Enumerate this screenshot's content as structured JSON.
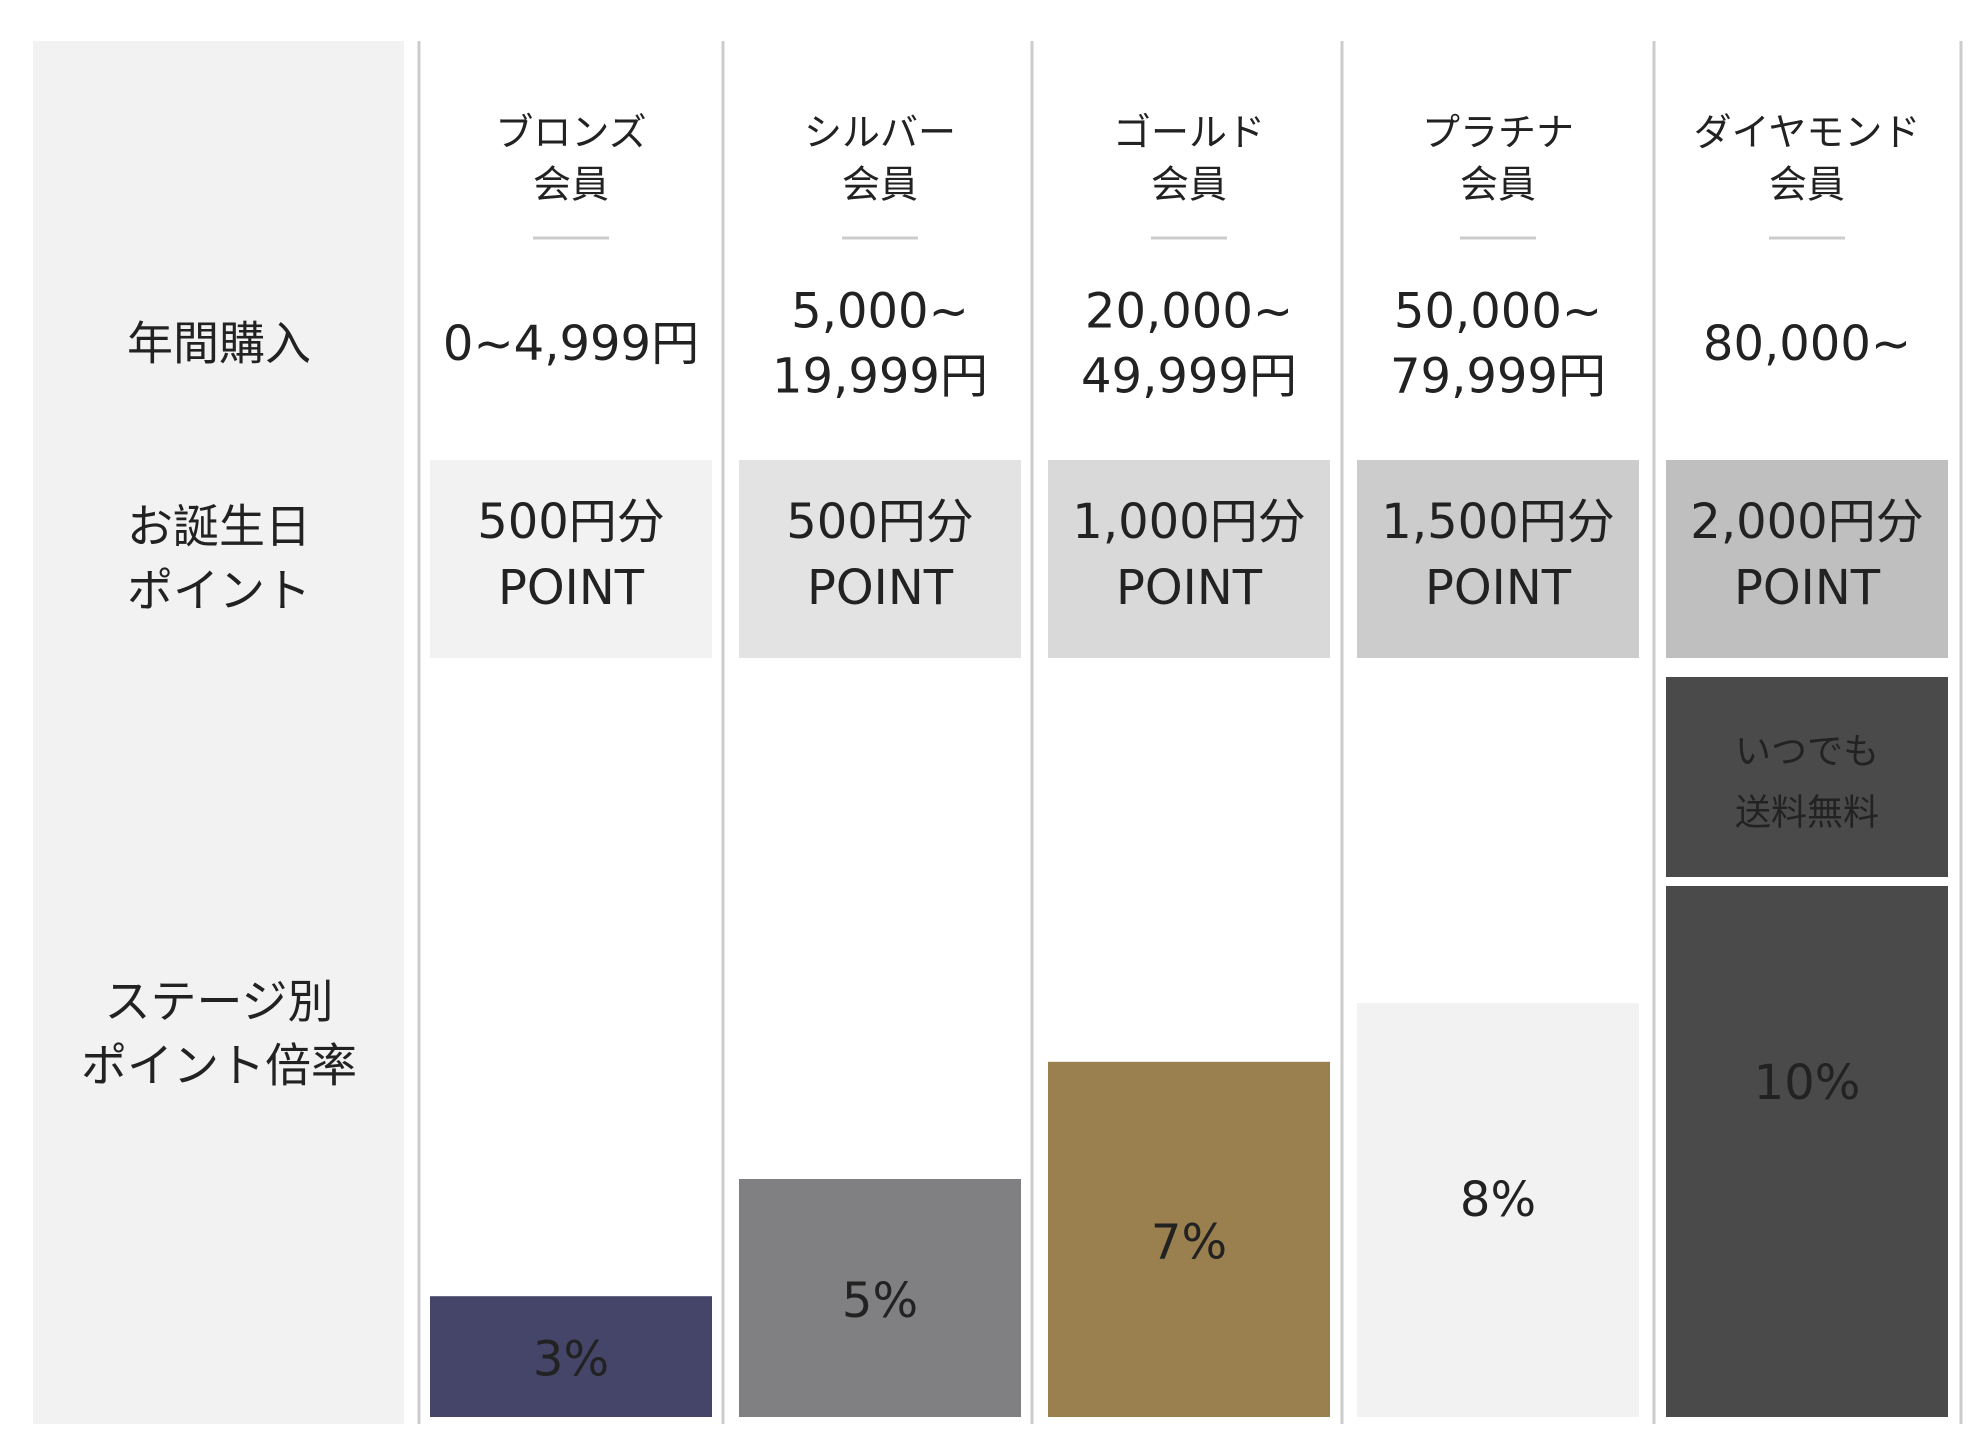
{
  "row_labels": [
    [
      "年間購入"
    ],
    [
      "お誕生日",
      "ポイント"
    ],
    [
      "ステージ別",
      "ポイント倍率"
    ]
  ],
  "tiers": [
    {
      "name": [
        "ブロンズ",
        "会員"
      ],
      "purchase": [
        "0~4,999円"
      ],
      "birthday": [
        "500円分",
        "POINT"
      ],
      "rate": {
        "value": 3,
        "label": "3%"
      }
    },
    {
      "name": [
        "シルバー",
        "会員"
      ],
      "purchase": [
        "5,000~",
        "19,999円"
      ],
      "birthday": [
        "500円分",
        "POINT"
      ],
      "rate": {
        "value": 5,
        "label": "5%"
      }
    },
    {
      "name": [
        "ゴールド",
        "会員"
      ],
      "purchase": [
        "20,000~",
        "49,999円"
      ],
      "birthday": [
        "1,000円分",
        "POINT"
      ],
      "rate": {
        "value": 7,
        "label": "7%"
      }
    },
    {
      "name": [
        "プラチナ",
        "会員"
      ],
      "purchase": [
        "50,000~",
        "79,999円"
      ],
      "birthday": [
        "1,500円分",
        "POINT"
      ],
      "rate": {
        "value": 8,
        "label": "8%"
      }
    },
    {
      "name": [
        "ダイヤモンド",
        "会員"
      ],
      "purchase": [
        "80,000~"
      ],
      "birthday": [
        "2,000円分",
        "POINT"
      ],
      "perk": [
        "いつでも",
        "送料無料"
      ],
      "rate": {
        "value": 10,
        "label": "10%"
      }
    }
  ]
}
